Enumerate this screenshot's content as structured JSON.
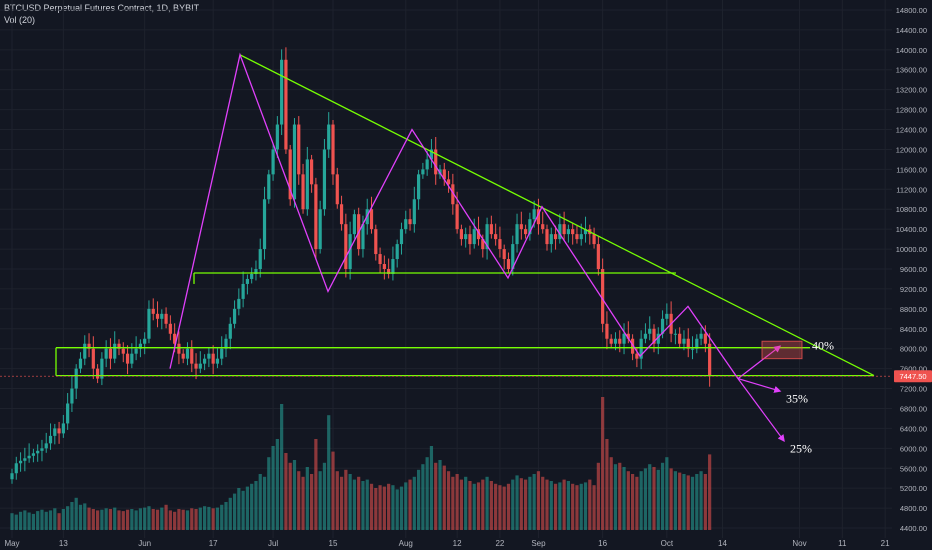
{
  "header": {
    "title": "BTCUSD Perpetual Futures Contract, 1D, BYBIT",
    "indicator": "Vol (20)"
  },
  "colors": {
    "background": "#131722",
    "grid": "#1e222d",
    "up": "#26a69a",
    "down": "#ef5350",
    "trendline": "#76ff03",
    "pattern": "#e040fb",
    "price_badge": "#ef5350"
  },
  "chart_data": {
    "type": "candlestick",
    "symbol": "BTCUSD",
    "ylim": [
      4200,
      15000
    ],
    "y_ticks": [
      4400,
      4800,
      5200,
      5600,
      6000,
      6400,
      6800,
      7200,
      7600,
      8000,
      8400,
      8800,
      9200,
      9600,
      10000,
      10400,
      10800,
      11200,
      11600,
      12000,
      12400,
      12800,
      13200,
      13600,
      14000,
      14400,
      14800
    ],
    "x_ticks": [
      "May",
      "13",
      "Jun",
      "17",
      "Jul",
      "15",
      "Aug",
      "12",
      "22",
      "Sep",
      "16",
      "Oct",
      "14",
      "Nov",
      "11",
      "21"
    ],
    "x_tick_days": [
      0,
      12,
      31,
      47,
      61,
      75,
      92,
      104,
      114,
      123,
      138,
      153,
      166,
      184,
      194,
      204
    ],
    "last_price_label": "7447.50",
    "last_price": 7447.5,
    "closes": [
      5500,
      5700,
      5750,
      5800,
      5850,
      5900,
      5950,
      6000,
      6100,
      6250,
      6400,
      6300,
      6500,
      6900,
      7200,
      7600,
      7800,
      8100,
      8000,
      7600,
      7400,
      7800,
      8000,
      7800,
      8100,
      8000,
      7900,
      7700,
      7900,
      8000,
      8100,
      8200,
      8800,
      8700,
      8600,
      8700,
      8500,
      8300,
      8100,
      7900,
      7800,
      8000,
      7700,
      7600,
      7700,
      7800,
      7900,
      7700,
      7800,
      8000,
      8200,
      8500,
      8800,
      9000,
      9300,
      9400,
      9500,
      9600,
      10000,
      11000,
      11500,
      12000,
      12500,
      13800,
      12000,
      11000,
      12500,
      11500,
      10800,
      11800,
      11300,
      10000,
      10800,
      12000,
      12500,
      11500,
      10900,
      10500,
      9600,
      10300,
      10700,
      10000,
      10500,
      10800,
      10400,
      9900,
      9700,
      9600,
      9500,
      9800,
      10100,
      10400,
      10600,
      10500,
      11000,
      11500,
      11600,
      11800,
      12000,
      11500,
      11600,
      11400,
      11300,
      10900,
      10400,
      10200,
      10300,
      10100,
      10400,
      10200,
      10000,
      10500,
      10300,
      10200,
      10000,
      9800,
      9600,
      10100,
      10500,
      10400,
      10300,
      10600,
      10800,
      10500,
      10400,
      10100,
      10300,
      10200,
      10500,
      10300,
      10400,
      10300,
      10200,
      10300,
      10400,
      10300,
      10100,
      9600,
      8500,
      8200,
      8100,
      8200,
      8100,
      8300,
      8200,
      7900,
      7800,
      8200,
      8300,
      8400,
      8100,
      8300,
      8600,
      8700,
      8300,
      8300,
      8100,
      8200,
      8000,
      8000,
      8200,
      8300,
      8100,
      7447.5
    ],
    "volumes": [
      120,
      110,
      130,
      140,
      125,
      115,
      135,
      145,
      130,
      140,
      155,
      120,
      150,
      170,
      200,
      230,
      180,
      190,
      160,
      150,
      140,
      145,
      155,
      150,
      160,
      140,
      135,
      145,
      150,
      140,
      155,
      160,
      170,
      150,
      145,
      160,
      180,
      140,
      130,
      150,
      145,
      140,
      155,
      150,
      160,
      170,
      165,
      155,
      160,
      180,
      200,
      230,
      260,
      300,
      280,
      310,
      330,
      350,
      400,
      380,
      520,
      600,
      650,
      900,
      550,
      480,
      500,
      420,
      380,
      450,
      400,
      650,
      420,
      480,
      820,
      560,
      420,
      380,
      430,
      400,
      360,
      380,
      350,
      360,
      330,
      300,
      320,
      310,
      330,
      320,
      290,
      310,
      340,
      360,
      380,
      430,
      470,
      520,
      600,
      480,
      500,
      460,
      420,
      380,
      400,
      360,
      380,
      350,
      330,
      340,
      360,
      380,
      350,
      330,
      320,
      310,
      330,
      360,
      390,
      370,
      360,
      380,
      400,
      420,
      380,
      360,
      350,
      330,
      340,
      360,
      350,
      330,
      320,
      330,
      340,
      360,
      320,
      480,
      950,
      650,
      520,
      470,
      480,
      450,
      420,
      400,
      380,
      420,
      440,
      470,
      450,
      430,
      480,
      520,
      440,
      420,
      410,
      400,
      390,
      380,
      400,
      420,
      400,
      540
    ]
  }
}
